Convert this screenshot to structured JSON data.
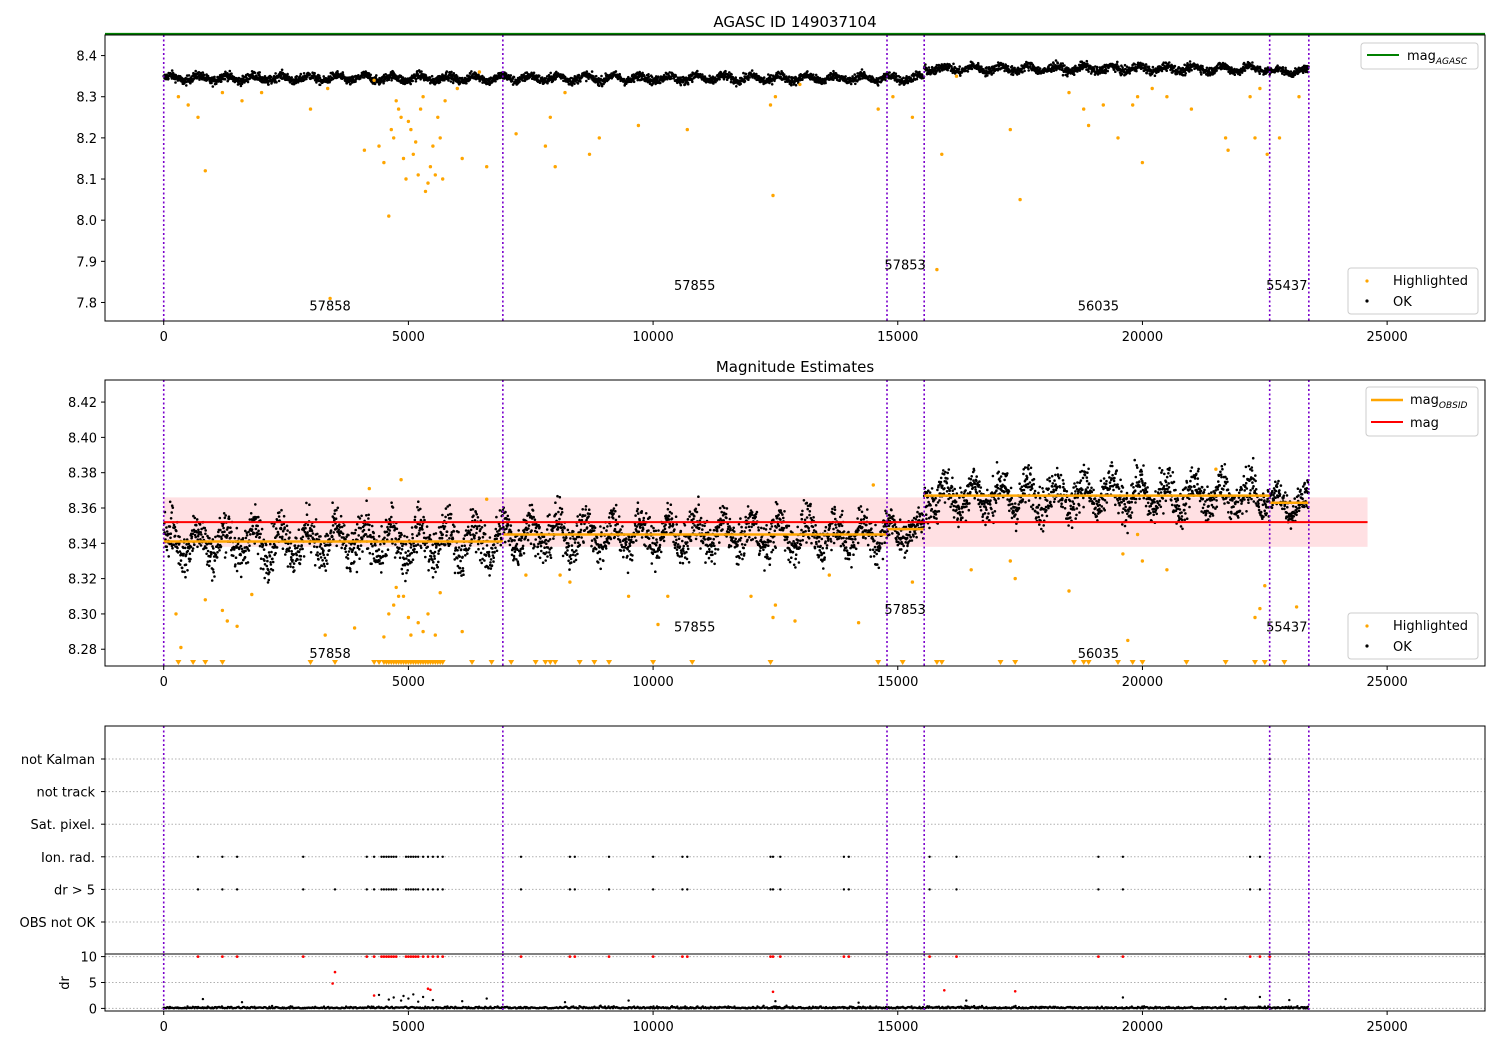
{
  "chart_data": [
    {
      "type": "scatter",
      "title": "AGASC ID 149037104",
      "xlabel": "",
      "ylabel": "",
      "xlim": [
        -1200,
        27000
      ],
      "ylim": [
        7.755,
        8.45
      ],
      "xticks": [
        0,
        5000,
        10000,
        15000,
        20000,
        25000
      ],
      "xtick_labels": [
        "0",
        "5000",
        "10000",
        "15000",
        "20000",
        "25000"
      ],
      "yticks": [
        7.8,
        7.9,
        8.0,
        8.1,
        8.2,
        8.3,
        8.4
      ],
      "ytick_labels": [
        "7.8",
        "7.9",
        "8.0",
        "8.1",
        "8.2",
        "8.3",
        "8.4"
      ],
      "legend_upper": {
        "position": "top-right",
        "entries": [
          {
            "label": "mag",
            "sub": "AGASC",
            "color": "#008000"
          }
        ]
      },
      "legend_lower": {
        "position": "bottom-right",
        "entries": [
          {
            "label": "Highlighted",
            "color": "#ffa500"
          },
          {
            "label": "OK",
            "color": "#000000"
          }
        ]
      },
      "agasc_mag": 8.452,
      "obsid_boundaries": [
        0,
        6930,
        14780,
        15540,
        22600,
        23400
      ],
      "obsid_labels": [
        {
          "text": "57858",
          "x": 3400,
          "y": 7.78
        },
        {
          "text": "57855",
          "x": 10850,
          "y": 7.83
        },
        {
          "text": "57853",
          "x": 15150,
          "y": 7.88
        },
        {
          "text": "56035",
          "x": 19100,
          "y": 7.78
        },
        {
          "text": "55437",
          "x": 22950,
          "y": 7.83
        }
      ],
      "ok_segments": [
        {
          "x0": 0,
          "x1": 6930,
          "center": 8.345,
          "spread": 0.02
        },
        {
          "x0": 6930,
          "x1": 14780,
          "center": 8.345,
          "spread": 0.02
        },
        {
          "x0": 14780,
          "x1": 15540,
          "center": 8.345,
          "spread": 0.02
        },
        {
          "x0": 15540,
          "x1": 22600,
          "center": 8.368,
          "spread": 0.02
        },
        {
          "x0": 22600,
          "x1": 23400,
          "center": 8.362,
          "spread": 0.016
        }
      ],
      "highlighted_points": [
        [
          300,
          8.3
        ],
        [
          500,
          8.28
        ],
        [
          700,
          8.25
        ],
        [
          850,
          8.12
        ],
        [
          1200,
          8.31
        ],
        [
          1600,
          8.29
        ],
        [
          2000,
          8.31
        ],
        [
          3000,
          8.27
        ],
        [
          3350,
          8.32
        ],
        [
          3400,
          7.81
        ],
        [
          4100,
          8.17
        ],
        [
          4300,
          8.34
        ],
        [
          4400,
          8.18
        ],
        [
          4500,
          8.14
        ],
        [
          4600,
          8.01
        ],
        [
          4650,
          8.22
        ],
        [
          4700,
          8.2
        ],
        [
          4750,
          8.29
        ],
        [
          4800,
          8.27
        ],
        [
          4850,
          8.25
        ],
        [
          4900,
          8.15
        ],
        [
          4950,
          8.1
        ],
        [
          5000,
          8.24
        ],
        [
          5050,
          8.22
        ],
        [
          5100,
          8.16
        ],
        [
          5150,
          8.19
        ],
        [
          5200,
          8.11
        ],
        [
          5250,
          8.27
        ],
        [
          5300,
          8.3
        ],
        [
          5350,
          8.07
        ],
        [
          5400,
          8.09
        ],
        [
          5450,
          8.13
        ],
        [
          5500,
          8.18
        ],
        [
          5550,
          8.11
        ],
        [
          5600,
          8.25
        ],
        [
          5650,
          8.2
        ],
        [
          5700,
          8.1
        ],
        [
          5750,
          8.29
        ],
        [
          6000,
          8.32
        ],
        [
          6100,
          8.15
        ],
        [
          6450,
          8.36
        ],
        [
          6600,
          8.13
        ],
        [
          7200,
          8.21
        ],
        [
          7800,
          8.18
        ],
        [
          7900,
          8.25
        ],
        [
          8000,
          8.13
        ],
        [
          8200,
          8.31
        ],
        [
          8700,
          8.16
        ],
        [
          8900,
          8.2
        ],
        [
          9700,
          8.23
        ],
        [
          10700,
          8.22
        ],
        [
          12400,
          8.28
        ],
        [
          12450,
          8.06
        ],
        [
          12500,
          8.3
        ],
        [
          13000,
          8.33
        ],
        [
          14600,
          8.27
        ],
        [
          14900,
          8.3
        ],
        [
          15300,
          8.25
        ],
        [
          15800,
          7.88
        ],
        [
          15900,
          8.16
        ],
        [
          16200,
          8.35
        ],
        [
          17300,
          8.22
        ],
        [
          17500,
          8.05
        ],
        [
          18500,
          8.31
        ],
        [
          18800,
          8.27
        ],
        [
          18900,
          8.23
        ],
        [
          19200,
          8.28
        ],
        [
          19500,
          8.2
        ],
        [
          19800,
          8.28
        ],
        [
          19900,
          8.3
        ],
        [
          20000,
          8.14
        ],
        [
          20200,
          8.32
        ],
        [
          20500,
          8.3
        ],
        [
          21000,
          8.27
        ],
        [
          21700,
          8.2
        ],
        [
          21750,
          8.17
        ],
        [
          22200,
          8.3
        ],
        [
          22300,
          8.2
        ],
        [
          22400,
          8.32
        ],
        [
          22550,
          8.16
        ],
        [
          22800,
          8.2
        ],
        [
          23200,
          8.3
        ]
      ]
    },
    {
      "type": "scatter",
      "title": "Magnitude Estimates",
      "xlabel": "",
      "ylabel": "",
      "xlim": [
        -1200,
        27000
      ],
      "ylim": [
        8.2705,
        8.4325
      ],
      "xticks": [
        0,
        5000,
        10000,
        15000,
        20000,
        25000
      ],
      "xtick_labels": [
        "0",
        "5000",
        "10000",
        "15000",
        "20000",
        "25000"
      ],
      "yticks": [
        8.28,
        8.3,
        8.32,
        8.34,
        8.36,
        8.38,
        8.4,
        8.42
      ],
      "ytick_labels": [
        "8.28",
        "8.30",
        "8.32",
        "8.34",
        "8.36",
        "8.38",
        "8.40",
        "8.42"
      ],
      "legend_upper": {
        "position": "top-right",
        "entries": [
          {
            "label": "mag",
            "sub": "OBSID",
            "color": "#ffa500"
          },
          {
            "label": "mag",
            "sub": "",
            "color": "#ff0000"
          }
        ]
      },
      "legend_lower": {
        "position": "bottom-right",
        "entries": [
          {
            "label": "Highlighted",
            "color": "#ffa500"
          },
          {
            "label": "OK",
            "color": "#000000"
          }
        ]
      },
      "mag": 8.352,
      "mag_band": [
        8.338,
        8.366
      ],
      "mag_band_x": [
        0,
        24600
      ],
      "obsid_boundaries": [
        0,
        6930,
        14780,
        15540,
        22600,
        23400
      ],
      "obsid_mags": [
        {
          "x0": 0,
          "x1": 6930,
          "mag": 8.341
        },
        {
          "x0": 6930,
          "x1": 14780,
          "mag": 8.345
        },
        {
          "x0": 14780,
          "x1": 15540,
          "mag": 8.348
        },
        {
          "x0": 15540,
          "x1": 22600,
          "mag": 8.367
        },
        {
          "x0": 22600,
          "x1": 23400,
          "mag": 8.363
        }
      ],
      "obsid_labels": [
        {
          "text": "57858",
          "x": 3400,
          "y": 8.275
        },
        {
          "text": "57855",
          "x": 10850,
          "y": 8.29
        },
        {
          "text": "57853",
          "x": 15150,
          "y": 8.3
        },
        {
          "text": "56035",
          "x": 19100,
          "y": 8.275
        },
        {
          "text": "55437",
          "x": 22950,
          "y": 8.29
        }
      ],
      "ok_segments": [
        {
          "x0": 0,
          "x1": 6930,
          "center": 8.341,
          "spread": 0.024
        },
        {
          "x0": 6930,
          "x1": 14780,
          "center": 8.345,
          "spread": 0.022
        },
        {
          "x0": 14780,
          "x1": 15540,
          "center": 8.347,
          "spread": 0.016
        },
        {
          "x0": 15540,
          "x1": 22600,
          "center": 8.367,
          "spread": 0.022
        },
        {
          "x0": 22600,
          "x1": 23400,
          "center": 8.363,
          "spread": 0.016
        }
      ],
      "highlighted_points": [
        [
          250,
          8.3
        ],
        [
          350,
          8.281
        ],
        [
          850,
          8.308
        ],
        [
          1200,
          8.302
        ],
        [
          1300,
          8.296
        ],
        [
          1500,
          8.293
        ],
        [
          1800,
          8.311
        ],
        [
          3300,
          8.288
        ],
        [
          3900,
          8.292
        ],
        [
          4200,
          8.371
        ],
        [
          4500,
          8.287
        ],
        [
          4600,
          8.3
        ],
        [
          4700,
          8.305
        ],
        [
          4750,
          8.315
        ],
        [
          4800,
          8.31
        ],
        [
          4850,
          8.376
        ],
        [
          4900,
          8.31
        ],
        [
          5000,
          8.298
        ],
        [
          5050,
          8.288
        ],
        [
          5200,
          8.295
        ],
        [
          5300,
          8.29
        ],
        [
          5400,
          8.3
        ],
        [
          5550,
          8.288
        ],
        [
          5650,
          8.312
        ],
        [
          6100,
          8.29
        ],
        [
          6600,
          8.365
        ],
        [
          7400,
          8.322
        ],
        [
          8100,
          8.322
        ],
        [
          8300,
          8.318
        ],
        [
          9500,
          8.31
        ],
        [
          10100,
          8.294
        ],
        [
          10300,
          8.31
        ],
        [
          12000,
          8.31
        ],
        [
          12450,
          8.298
        ],
        [
          12500,
          8.305
        ],
        [
          12900,
          8.296
        ],
        [
          13600,
          8.322
        ],
        [
          14200,
          8.295
        ],
        [
          14500,
          8.373
        ],
        [
          15300,
          8.318
        ],
        [
          16500,
          8.325
        ],
        [
          17300,
          8.33
        ],
        [
          17400,
          8.32
        ],
        [
          18500,
          8.313
        ],
        [
          19600,
          8.334
        ],
        [
          19700,
          8.285
        ],
        [
          19900,
          8.345
        ],
        [
          20000,
          8.33
        ],
        [
          20500,
          8.325
        ],
        [
          21500,
          8.382
        ],
        [
          22300,
          8.298
        ],
        [
          22400,
          8.303
        ],
        [
          22500,
          8.316
        ],
        [
          23150,
          8.304
        ]
      ],
      "below_axis_x": [
        300,
        600,
        850,
        1200,
        3000,
        3500,
        4300,
        4400,
        4500,
        4550,
        4600,
        4650,
        4700,
        4750,
        4800,
        4850,
        4900,
        4950,
        5000,
        5050,
        5100,
        5150,
        5200,
        5250,
        5300,
        5350,
        5400,
        5450,
        5500,
        5550,
        5600,
        5650,
        5700,
        6300,
        6700,
        7100,
        7600,
        7800,
        7900,
        8000,
        8500,
        8800,
        9100,
        10000,
        10800,
        12400,
        14600,
        15100,
        15800,
        15900,
        17100,
        17400,
        18600,
        18800,
        18900,
        19500,
        19800,
        20000,
        20900,
        21700,
        22300,
        22500,
        22900
      ]
    },
    {
      "type": "scatter",
      "title": "",
      "xlabel": "",
      "ylabel": "",
      "xlim": [
        -1200,
        27000
      ],
      "flag_rows": [
        "not Kalman",
        "not track",
        "Sat. pixel.",
        "Ion. rad.",
        "dr > 5",
        "OBS not OK"
      ],
      "obsid_boundaries": [
        0,
        6930,
        14780,
        15540,
        22600,
        23400
      ],
      "flag_points": {
        "not Kalman": [
          22600
        ],
        "not track": [],
        "Sat. pixel.": [],
        "Ion. rad.": [
          700,
          1200,
          1500,
          2850,
          4150,
          4300,
          4450,
          4500,
          4550,
          4600,
          4650,
          4700,
          4750,
          4950,
          5000,
          5050,
          5100,
          5150,
          5200,
          5300,
          5400,
          5500,
          5600,
          5700,
          7300,
          8300,
          8400,
          9100,
          10000,
          10600,
          10700,
          12400,
          12450,
          12600,
          13900,
          14000,
          15650,
          16200,
          19100,
          19600,
          22200,
          22400
        ],
        "dr > 5": [
          700,
          1200,
          1500,
          2850,
          3500,
          4150,
          4300,
          4450,
          4500,
          4550,
          4600,
          4650,
          4700,
          4750,
          4950,
          5000,
          5050,
          5100,
          5150,
          5200,
          5300,
          5400,
          5500,
          5600,
          5700,
          7300,
          8300,
          8400,
          9100,
          10000,
          10600,
          10700,
          12400,
          12450,
          12600,
          13900,
          14000,
          15650,
          16200,
          19100,
          19600,
          22200,
          22400
        ],
        "OBS not OK": []
      }
    },
    {
      "type": "scatter",
      "title": "",
      "xlabel": "",
      "ylabel": "dr",
      "xlim": [
        -1200,
        27000
      ],
      "ylim": [
        -0.5,
        10.5
      ],
      "xticks": [
        0,
        5000,
        10000,
        15000,
        20000,
        25000
      ],
      "xtick_labels": [
        "0",
        "5000",
        "10000",
        "15000",
        "20000",
        "25000"
      ],
      "yticks": [
        0,
        5,
        10
      ],
      "ytick_labels": [
        "0",
        "5",
        "10"
      ],
      "obsid_boundaries": [
        0,
        6930,
        14780,
        15540,
        22600,
        23400
      ],
      "capped_points_x": [
        700,
        1200,
        1500,
        2850,
        4150,
        4300,
        4450,
        4500,
        4550,
        4600,
        4650,
        4700,
        4750,
        4950,
        5000,
        5050,
        5100,
        5150,
        5200,
        5300,
        5400,
        5500,
        5600,
        5700,
        7300,
        8300,
        8400,
        9100,
        10000,
        10600,
        10700,
        12400,
        12450,
        12600,
        13900,
        14000,
        15650,
        16200,
        19100,
        19600,
        22200,
        22400,
        22600
      ],
      "red_points": [
        [
          3500,
          7
        ],
        [
          3450,
          4.8
        ],
        [
          4300,
          2.5
        ],
        [
          5400,
          3.8
        ],
        [
          5450,
          3.6
        ],
        [
          12450,
          3.2
        ],
        [
          15950,
          3.5
        ],
        [
          17400,
          3.3
        ]
      ],
      "black_points": [
        [
          800,
          1.8
        ],
        [
          1600,
          1.2
        ],
        [
          4400,
          2.6
        ],
        [
          4600,
          1.7
        ],
        [
          4700,
          2.1
        ],
        [
          4850,
          1.5
        ],
        [
          4900,
          2.4
        ],
        [
          5000,
          1.9
        ],
        [
          5100,
          2.7
        ],
        [
          5200,
          1.3
        ],
        [
          5300,
          2.2
        ],
        [
          5500,
          1.6
        ],
        [
          6100,
          1.4
        ],
        [
          6600,
          1.9
        ],
        [
          8200,
          1.2
        ],
        [
          9500,
          1.5
        ],
        [
          12500,
          1.4
        ],
        [
          14200,
          1.1
        ],
        [
          16400,
          1.5
        ],
        [
          19600,
          2.1
        ],
        [
          21700,
          1.8
        ],
        [
          22400,
          2.2
        ],
        [
          23000,
          1.6
        ]
      ],
      "baseline_x": [
        0,
        23400
      ]
    }
  ],
  "colors": {
    "ok": "#000000",
    "highlighted": "#ffa500",
    "agasc_line": "#008000",
    "mag_line": "#ff0000",
    "mag_band": "#ffe0e3",
    "obsid_line": "#ffa500",
    "boundary_line": "#7a00cc",
    "flag_dr": "#ff0000",
    "grid": "#b0b0b0"
  }
}
